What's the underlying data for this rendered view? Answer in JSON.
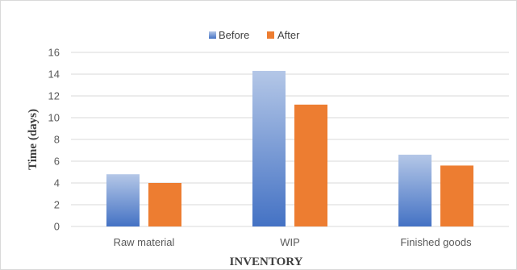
{
  "chart_data": {
    "type": "bar",
    "title": "",
    "categories": [
      "Raw material",
      "WIP",
      "Finished goods"
    ],
    "series": [
      {
        "name": "Before",
        "values": [
          4.8,
          14.3,
          6.6
        ],
        "color_top": "#b4c7e7",
        "color_bottom": "#4472c4"
      },
      {
        "name": "After",
        "values": [
          4.0,
          11.2,
          5.6
        ],
        "color": "#ed7d31"
      }
    ],
    "xlabel": "INVENTORY",
    "ylabel": "Time (days)",
    "ylim": [
      0,
      16
    ],
    "yticks": [
      0,
      2,
      4,
      6,
      8,
      10,
      12,
      14,
      16
    ],
    "grid": true,
    "legend_position": "top-center"
  }
}
